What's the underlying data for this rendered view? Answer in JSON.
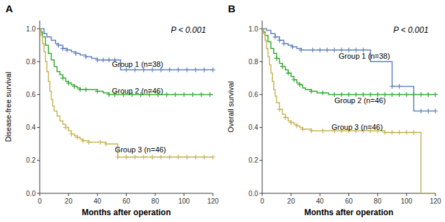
{
  "chart_data": [
    {
      "type": "step",
      "title": "A",
      "x_label": "Months after operation",
      "y_label": "Disease-free survival",
      "xlim": [
        0,
        120
      ],
      "ylim": [
        0.0,
        1.05
      ],
      "xticks": [
        0,
        20,
        40,
        60,
        80,
        100,
        120
      ],
      "yticks": [
        {
          "value": 0.0,
          "label": "0.0"
        },
        0.2,
        0.4,
        0.6,
        0.8,
        {
          "value": 1.0,
          "label": "1.0"
        }
      ],
      "grid": false,
      "annotations": [
        {
          "text": "P < 0.001"
        },
        {
          "text": "Group 1 (n=38)",
          "x": 50,
          "y": 0.78
        },
        {
          "text": "Group 2 (n=46)",
          "x": 50,
          "y": 0.62
        },
        {
          "text": "Group 3 (n=46)",
          "x": 52,
          "y": 0.26
        }
      ],
      "series": [
        {
          "color": "#6080c0",
          "x": [
            0,
            3,
            5,
            8,
            11,
            13,
            16,
            19,
            22,
            25,
            28,
            32,
            36,
            40,
            44,
            48,
            52,
            56,
            60,
            70,
            80,
            90,
            100,
            110,
            120
          ],
          "values": [
            1.0,
            0.97,
            0.95,
            0.93,
            0.91,
            0.9,
            0.88,
            0.87,
            0.86,
            0.85,
            0.84,
            0.83,
            0.82,
            0.81,
            0.81,
            0.81,
            0.81,
            0.75,
            0.75,
            0.75,
            0.75,
            0.75,
            0.75,
            0.75,
            0.75
          ],
          "censored": {
            "x": [
              13,
              16,
              19,
              25,
              32,
              40,
              44,
              48,
              52,
              60,
              66,
              72,
              78,
              84,
              90,
              96,
              102,
              108,
              114,
              120
            ],
            "values": [
              0.9,
              0.88,
              0.87,
              0.85,
              0.83,
              0.81,
              0.81,
              0.81,
              0.81,
              0.75,
              0.75,
              0.75,
              0.75,
              0.75,
              0.75,
              0.75,
              0.75,
              0.75,
              0.75,
              0.75
            ]
          }
        },
        {
          "color": "#33aa33",
          "x": [
            0,
            1,
            2,
            4,
            6,
            8,
            10,
            12,
            14,
            16,
            18,
            20,
            22,
            24,
            26,
            28,
            32,
            36,
            40,
            44,
            48,
            52,
            56,
            60,
            70,
            80,
            90,
            100,
            110,
            120
          ],
          "values": [
            1.0,
            0.98,
            0.95,
            0.9,
            0.85,
            0.81,
            0.77,
            0.74,
            0.72,
            0.7,
            0.68,
            0.67,
            0.66,
            0.65,
            0.64,
            0.63,
            0.63,
            0.63,
            0.62,
            0.61,
            0.6,
            0.6,
            0.6,
            0.6,
            0.6,
            0.6,
            0.6,
            0.6,
            0.6,
            0.6
          ],
          "censored": {
            "x": [
              16,
              20,
              24,
              28,
              32,
              40,
              48,
              52,
              58,
              64,
              70,
              76,
              82,
              88,
              94,
              100,
              106,
              112,
              118
            ],
            "values": [
              0.7,
              0.67,
              0.65,
              0.63,
              0.63,
              0.62,
              0.6,
              0.6,
              0.6,
              0.6,
              0.6,
              0.6,
              0.6,
              0.6,
              0.6,
              0.6,
              0.6,
              0.6,
              0.6
            ]
          }
        },
        {
          "color": "#c8b455",
          "x": [
            0,
            1,
            2,
            3,
            4,
            5,
            6,
            7,
            8,
            9,
            10,
            12,
            14,
            16,
            18,
            20,
            22,
            24,
            26,
            28,
            30,
            34,
            38,
            42,
            46,
            50,
            54,
            58,
            62,
            70,
            80,
            90,
            100,
            110,
            120
          ],
          "values": [
            1.0,
            0.96,
            0.91,
            0.86,
            0.8,
            0.74,
            0.68,
            0.62,
            0.57,
            0.53,
            0.5,
            0.47,
            0.44,
            0.42,
            0.4,
            0.38,
            0.36,
            0.35,
            0.34,
            0.33,
            0.32,
            0.31,
            0.31,
            0.31,
            0.3,
            0.3,
            0.22,
            0.22,
            0.22,
            0.22,
            0.22,
            0.22,
            0.22,
            0.22,
            0.22
          ],
          "censored": {
            "x": [
              18,
              22,
              26,
              30,
              34,
              42,
              46,
              54,
              60,
              66,
              72,
              78,
              84,
              90,
              96,
              102,
              108,
              114,
              120
            ],
            "values": [
              0.4,
              0.36,
              0.34,
              0.32,
              0.31,
              0.31,
              0.3,
              0.22,
              0.22,
              0.22,
              0.22,
              0.22,
              0.22,
              0.22,
              0.22,
              0.22,
              0.22,
              0.22,
              0.22
            ]
          }
        }
      ]
    },
    {
      "type": "step",
      "title": "B",
      "x_label": "Months after operation",
      "y_label": "Overall survival",
      "xlim": [
        0,
        120
      ],
      "ylim": [
        0.0,
        1.05
      ],
      "xticks": [
        0,
        20,
        40,
        60,
        80,
        100,
        120
      ],
      "yticks": [
        {
          "value": 0.0,
          "label": "0.0"
        },
        0.2,
        0.4,
        0.6,
        0.8,
        {
          "value": 1.0,
          "label": "1.0"
        }
      ],
      "grid": false,
      "annotations": [
        {
          "text": "P < 0.001"
        },
        {
          "text": "Group 1 (n=38)",
          "x": 53,
          "y": 0.83
        },
        {
          "text": "Group 2 (n=46)",
          "x": 50,
          "y": 0.56
        },
        {
          "text": "Group 3 (n=46)",
          "x": 48,
          "y": 0.4
        }
      ],
      "series": [
        {
          "color": "#6080c0",
          "x": [
            0,
            3,
            6,
            9,
            12,
            15,
            18,
            21,
            24,
            27,
            30,
            35,
            40,
            45,
            50,
            55,
            60,
            65,
            70,
            75,
            80,
            85,
            90,
            95,
            100,
            105,
            110,
            120
          ],
          "values": [
            1.0,
            0.99,
            0.97,
            0.95,
            0.93,
            0.91,
            0.9,
            0.89,
            0.88,
            0.87,
            0.87,
            0.87,
            0.87,
            0.87,
            0.87,
            0.87,
            0.87,
            0.87,
            0.87,
            0.8,
            0.8,
            0.8,
            0.65,
            0.65,
            0.65,
            0.5,
            0.5,
            0.5
          ],
          "censored": {
            "x": [
              9,
              12,
              15,
              21,
              27,
              35,
              40,
              45,
              50,
              55,
              60,
              65,
              70,
              90,
              95,
              110,
              115,
              120
            ],
            "values": [
              0.95,
              0.93,
              0.91,
              0.89,
              0.87,
              0.87,
              0.87,
              0.87,
              0.87,
              0.87,
              0.87,
              0.87,
              0.87,
              0.65,
              0.65,
              0.5,
              0.5,
              0.5
            ]
          }
        },
        {
          "color": "#33aa33",
          "x": [
            0,
            1,
            2,
            4,
            6,
            8,
            10,
            12,
            14,
            16,
            18,
            20,
            22,
            24,
            26,
            28,
            30,
            34,
            38,
            42,
            46,
            50,
            55,
            60,
            65,
            70,
            80,
            90,
            100,
            110,
            120
          ],
          "values": [
            1.0,
            0.98,
            0.96,
            0.92,
            0.88,
            0.85,
            0.82,
            0.79,
            0.77,
            0.75,
            0.73,
            0.71,
            0.69,
            0.67,
            0.66,
            0.64,
            0.63,
            0.62,
            0.61,
            0.61,
            0.6,
            0.6,
            0.6,
            0.6,
            0.6,
            0.6,
            0.6,
            0.6,
            0.6,
            0.6,
            0.6
          ],
          "censored": {
            "x": [
              10,
              14,
              18,
              22,
              26,
              34,
              42,
              50,
              55,
              60,
              65,
              70,
              75,
              80,
              85,
              90,
              95,
              100,
              105,
              110,
              115,
              120
            ],
            "values": [
              0.82,
              0.77,
              0.73,
              0.69,
              0.66,
              0.62,
              0.61,
              0.6,
              0.6,
              0.6,
              0.6,
              0.6,
              0.6,
              0.6,
              0.6,
              0.6,
              0.6,
              0.6,
              0.6,
              0.6,
              0.6,
              0.6
            ]
          }
        },
        {
          "color": "#c8b455",
          "x": [
            0,
            1,
            2,
            3,
            4,
            5,
            6,
            7,
            8,
            9,
            10,
            12,
            14,
            16,
            18,
            20,
            22,
            24,
            26,
            28,
            30,
            34,
            38,
            42,
            46,
            50,
            55,
            60,
            65,
            70,
            75,
            80,
            85,
            90,
            95,
            100,
            105,
            110,
            115,
            120
          ],
          "values": [
            1.0,
            0.97,
            0.93,
            0.88,
            0.83,
            0.78,
            0.73,
            0.68,
            0.63,
            0.59,
            0.55,
            0.51,
            0.48,
            0.46,
            0.44,
            0.43,
            0.42,
            0.41,
            0.4,
            0.39,
            0.39,
            0.38,
            0.38,
            0.38,
            0.38,
            0.38,
            0.38,
            0.38,
            0.38,
            0.38,
            0.38,
            0.38,
            0.37,
            0.37,
            0.37,
            0.37,
            0.37,
            0.0,
            0.0,
            0.0
          ],
          "censored": {
            "x": [
              12,
              16,
              20,
              24,
              28,
              34,
              42,
              50,
              55,
              60,
              65,
              70,
              75,
              80,
              85,
              90,
              95,
              100,
              105
            ],
            "values": [
              0.51,
              0.46,
              0.43,
              0.41,
              0.39,
              0.38,
              0.38,
              0.38,
              0.38,
              0.38,
              0.38,
              0.38,
              0.38,
              0.38,
              0.37,
              0.37,
              0.37,
              0.37,
              0.37
            ]
          }
        }
      ]
    }
  ]
}
